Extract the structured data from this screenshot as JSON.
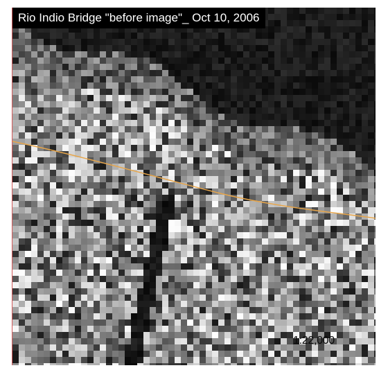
{
  "map": {
    "title": "Rio Indio Bridge \"before image\"_ Oct 10, 2006",
    "scale_label": "1:22,000",
    "road_color": "#e8a64a",
    "frame_border_color": "#d45a5a"
  }
}
